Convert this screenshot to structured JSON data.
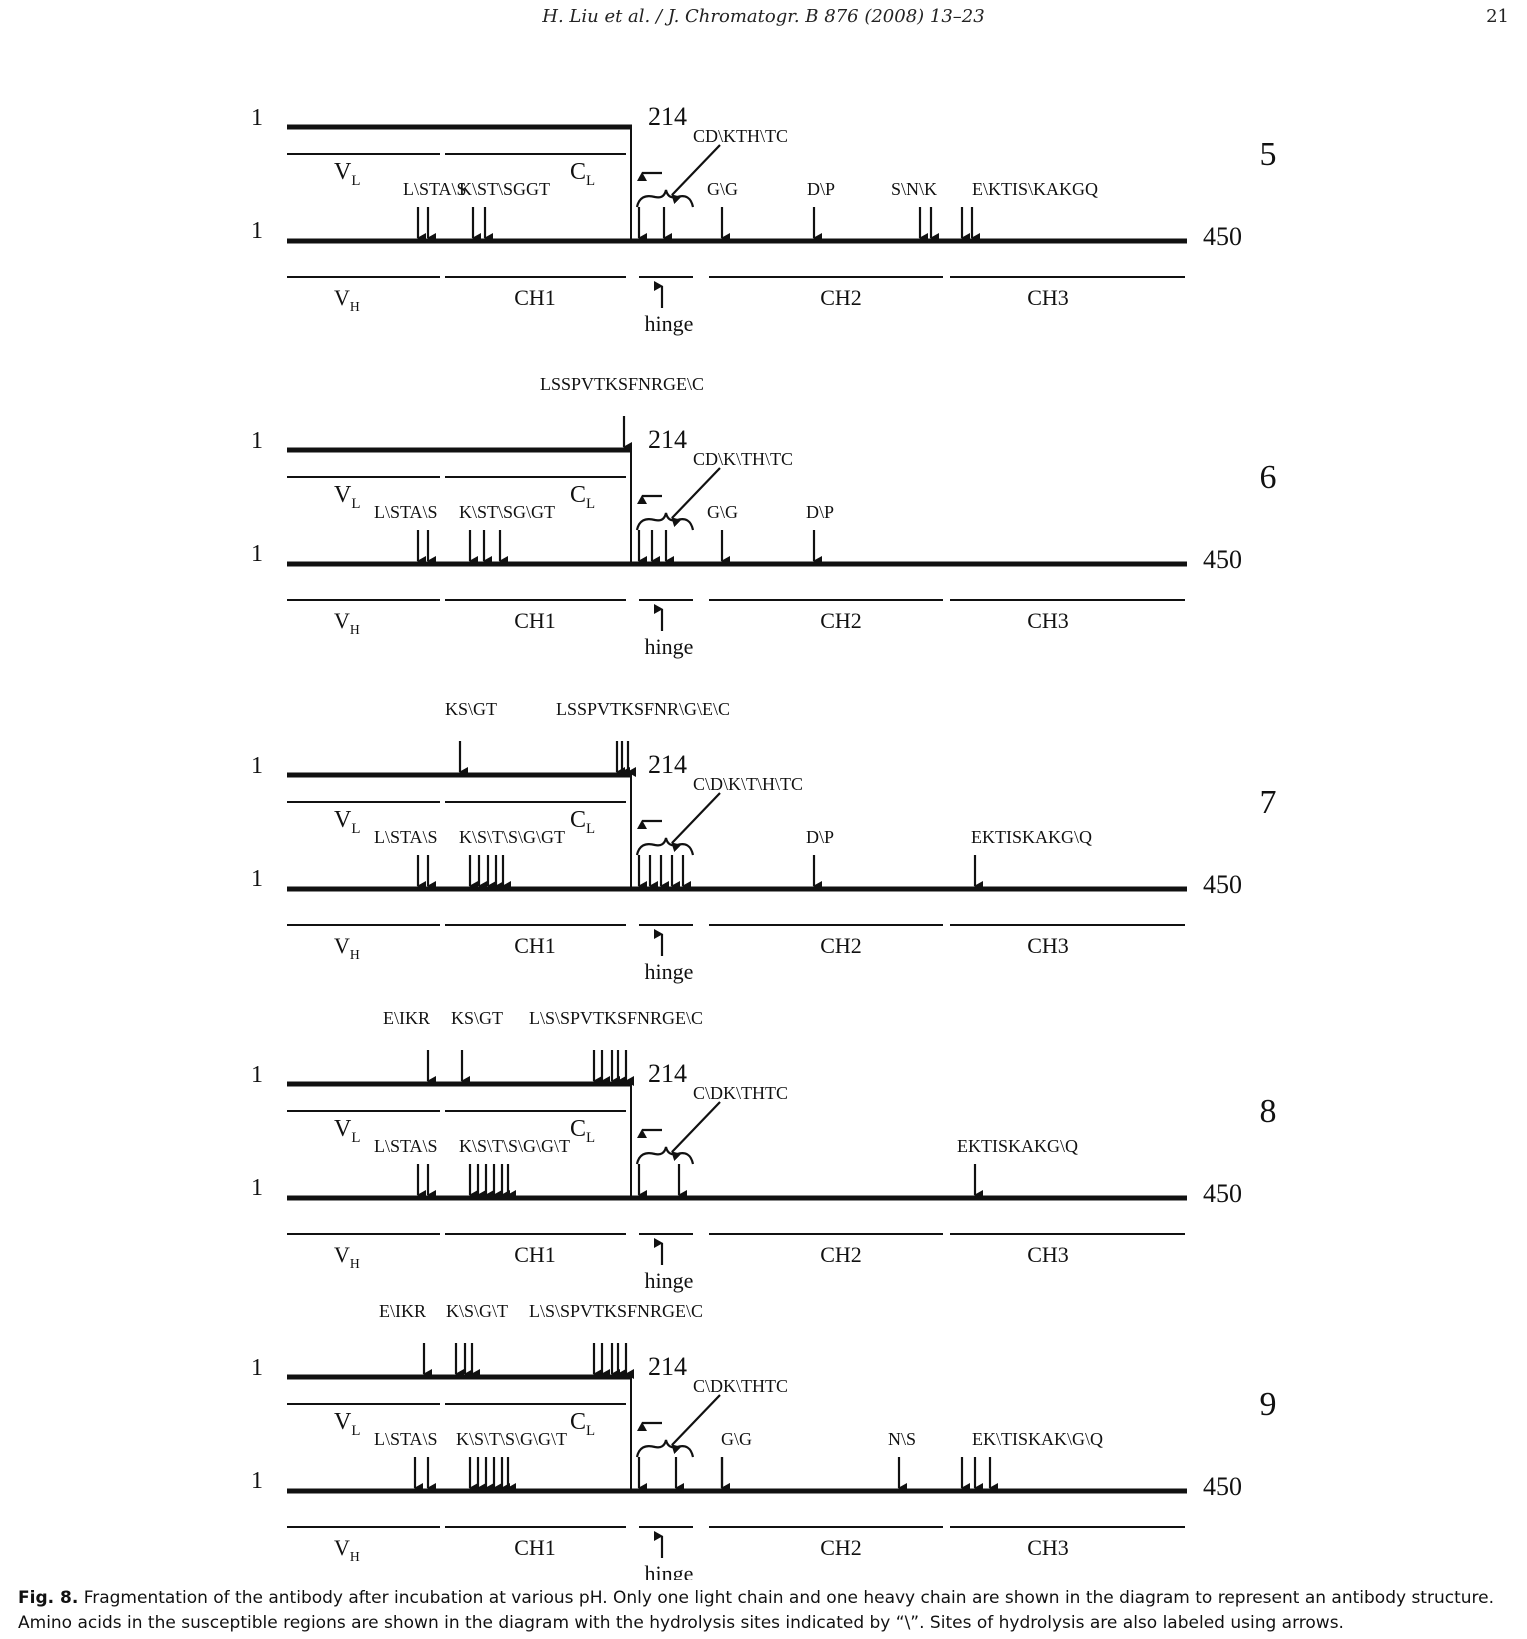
{
  "header": {
    "title": "H. Liu et al. / J. Chromatogr. B 876 (2008) 13–23",
    "page": "21"
  },
  "labels": {
    "start": "1",
    "lc_end": "214",
    "hc_end": "450",
    "vl": "V",
    "vl_sub": "L",
    "cl": "C",
    "cl_sub": "L",
    "vh": "V",
    "vh_sub": "H",
    "ch1": "CH1",
    "ch2": "CH2",
    "ch3": "CH3",
    "hinge": "hinge"
  },
  "panels": [
    {
      "id": "5",
      "light_above": [],
      "hinge_text": "CD\\KTH\\TC",
      "heavy": [
        {
          "text": "L\\STA\\S"
        },
        {
          "text": "K\\ST\\SGGT"
        },
        {
          "text": "G\\G"
        },
        {
          "text": "D\\P"
        },
        {
          "text": "S\\N\\K"
        },
        {
          "text": "E\\KTIS\\KAKGQ"
        }
      ]
    },
    {
      "id": "6",
      "light_above": [
        {
          "text": "LSSPVTKSFNRGE\\C"
        }
      ],
      "hinge_text": "CD\\K\\TH\\TC",
      "heavy": [
        {
          "text": "L\\STA\\S"
        },
        {
          "text": "K\\ST\\SG\\GT"
        },
        {
          "text": "G\\G"
        },
        {
          "text": "D\\P"
        }
      ]
    },
    {
      "id": "7",
      "light_above": [
        {
          "text": "KS\\GT"
        },
        {
          "text": "LSSPVTKSFNR\\G\\E\\C"
        }
      ],
      "hinge_text": "C\\D\\K\\T\\H\\TC",
      "heavy": [
        {
          "text": "L\\STA\\S"
        },
        {
          "text": "K\\S\\T\\S\\G\\GT"
        },
        {
          "text": "D\\P"
        },
        {
          "text": "EKTISKAKG\\Q"
        }
      ]
    },
    {
      "id": "8",
      "light_above": [
        {
          "text": "E\\IKR"
        },
        {
          "text": "KS\\GT"
        },
        {
          "text": "L\\S\\SPVTKSFNRGE\\C"
        }
      ],
      "hinge_text": "C\\DK\\THTC",
      "heavy": [
        {
          "text": "L\\STA\\S"
        },
        {
          "text": "K\\S\\T\\S\\G\\G\\T"
        },
        {
          "text": "EKTISKAKG\\Q"
        }
      ]
    },
    {
      "id": "9",
      "light_above": [
        {
          "text": "E\\IKR"
        },
        {
          "text": "K\\S\\G\\T"
        },
        {
          "text": "L\\S\\SPVTKSFNRGE\\C"
        }
      ],
      "hinge_text": "C\\DK\\THTC",
      "heavy": [
        {
          "text": "L\\STA\\S"
        },
        {
          "text": "K\\S\\T\\S\\G\\G\\T"
        },
        {
          "text": "G\\G"
        },
        {
          "text": "N\\S"
        },
        {
          "text": "EK\\TISKAK\\G\\Q"
        }
      ]
    }
  ],
  "caption": {
    "label": "Fig. 8.",
    "text": "Fragmentation of the antibody after incubation at various pH. Only one light chain and one heavy chain are shown in the diagram to represent an antibody structure. Amino acids in the susceptible regions are shown in the diagram with the hydrolysis sites indicated by “\\”. Sites of hydrolysis are also labeled using arrows."
  }
}
